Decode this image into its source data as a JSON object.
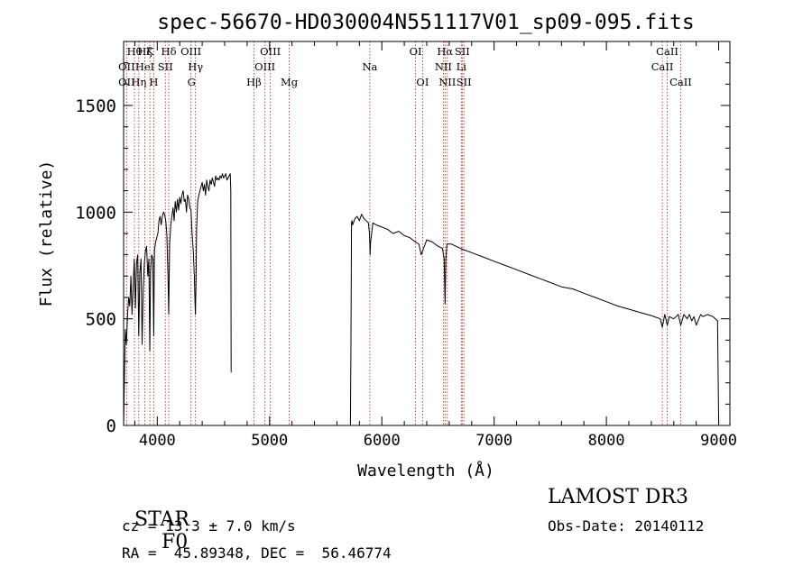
{
  "colors": {
    "spectrum": "#000000",
    "line_markers": "#c0392b",
    "axes": "#000000"
  },
  "chart_data": {
    "type": "line",
    "title": "spec-56670-HD030004N551117V01_sp09-095.fits",
    "xlabel": "Wavelength (Å)",
    "ylabel": "Flux (relative)",
    "xlim": [
      3700,
      9100
    ],
    "ylim": [
      0,
      1800
    ],
    "x_ticks": [
      4000,
      5000,
      6000,
      7000,
      8000,
      9000
    ],
    "x_tick_labels": [
      "4000",
      "5000",
      "6000",
      "7000",
      "8000",
      "9000"
    ],
    "y_ticks": [
      0,
      500,
      1000,
      1500
    ],
    "y_tick_labels": [
      "0",
      "500",
      "1000",
      "1500"
    ],
    "grid": false,
    "gaps": [
      [
        4660,
        5720
      ]
    ],
    "series": [
      {
        "x": [
          3700,
          3715,
          3725,
          3735,
          3745,
          3755,
          3765,
          3775,
          3785,
          3795,
          3805,
          3815,
          3825,
          3835,
          3845,
          3855,
          3865,
          3875,
          3885,
          3895,
          3905,
          3915,
          3925,
          3933,
          3940,
          3950,
          3960,
          3968,
          3975,
          3985,
          3995,
          4005,
          4015,
          4025,
          4035,
          4045,
          4055,
          4065,
          4075,
          4085,
          4095,
          4102,
          4110,
          4120,
          4130,
          4140,
          4150,
          4160,
          4170,
          4180,
          4190,
          4200,
          4210,
          4220,
          4230,
          4240,
          4250,
          4260,
          4270,
          4280,
          4290,
          4300,
          4310,
          4320,
          4330,
          4335,
          4340,
          4345,
          4350,
          4360,
          4370,
          4380,
          4390,
          4400,
          4410,
          4420,
          4430,
          4440,
          4450,
          4460,
          4470,
          4480,
          4490,
          4500,
          4510,
          4520,
          4530,
          4540,
          4550,
          4560,
          4570,
          4580,
          4590,
          4600,
          4610,
          4620,
          4630,
          4640,
          4650,
          4655,
          4658,
          4660
        ],
        "y": [
          0,
          450,
          380,
          520,
          600,
          560,
          700,
          520,
          650,
          780,
          550,
          760,
          800,
          420,
          720,
          780,
          380,
          650,
          760,
          820,
          840,
          700,
          780,
          350,
          720,
          800,
          780,
          420,
          820,
          860,
          880,
          900,
          960,
          980,
          940,
          980,
          1000,
          990,
          960,
          900,
          700,
          520,
          850,
          940,
          980,
          1020,
          960,
          1050,
          1000,
          1060,
          1010,
          1070,
          1040,
          1080,
          1100,
          1050,
          1060,
          1000,
          1080,
          1060,
          1020,
          1010,
          900,
          820,
          700,
          600,
          520,
          680,
          920,
          1050,
          1080,
          1100,
          1120,
          1140,
          1100,
          1130,
          1080,
          1150,
          1120,
          1100,
          1150,
          1130,
          1160,
          1140,
          1120,
          1170,
          1150,
          1160,
          1150,
          1170,
          1160,
          1180,
          1160,
          1170,
          1180,
          1150,
          1160,
          1170,
          1180,
          1100,
          250,
          250
        ]
      },
      {
        "x": [
          5720,
          5725,
          5730,
          5735,
          5740,
          5760,
          5780,
          5800,
          5820,
          5840,
          5860,
          5880,
          5890,
          5895,
          5900,
          5920,
          5950,
          6000,
          6050,
          6100,
          6150,
          6200,
          6250,
          6300,
          6330,
          6350,
          6400,
          6450,
          6500,
          6540,
          6555,
          6563,
          6570,
          6580,
          6620,
          6700,
          6800,
          6900,
          7000,
          7100,
          7200,
          7300,
          7400,
          7500,
          7600,
          7700,
          7800,
          7900,
          8000,
          8100,
          8200,
          8300,
          8400,
          8480,
          8498,
          8520,
          8542,
          8560,
          8600,
          8640,
          8662,
          8690,
          8720,
          8740,
          8760,
          8780,
          8800,
          8840,
          8860,
          8900,
          8950,
          8990,
          9000
        ],
        "y": [
          0,
          400,
          950,
          960,
          940,
          970,
          980,
          960,
          990,
          970,
          960,
          950,
          900,
          800,
          860,
          950,
          940,
          930,
          920,
          900,
          910,
          890,
          880,
          860,
          850,
          800,
          870,
          860,
          840,
          830,
          780,
          570,
          780,
          850,
          850,
          830,
          810,
          790,
          770,
          750,
          730,
          710,
          690,
          670,
          650,
          640,
          620,
          600,
          580,
          560,
          545,
          530,
          515,
          500,
          460,
          520,
          470,
          510,
          500,
          520,
          470,
          520,
          500,
          520,
          490,
          510,
          470,
          520,
          510,
          520,
          510,
          490,
          0
        ]
      }
    ],
    "line_labels": [
      {
        "text": "OII",
        "x": 3727,
        "row": 2,
        "marker": true
      },
      {
        "text": "OII",
        "x": 3727,
        "row": 3,
        "marker": false
      },
      {
        "text": "Hθ",
        "x": 3797,
        "row": 1,
        "marker": true
      },
      {
        "text": "Hη",
        "x": 3835,
        "row": 3,
        "marker": true
      },
      {
        "text": "Hζ",
        "x": 3889,
        "row": 1,
        "marker": true
      },
      {
        "text": "HeI",
        "x": 3889,
        "row": 2,
        "marker": false
      },
      {
        "text": "K",
        "x": 3934,
        "row": 1,
        "marker": true
      },
      {
        "text": "H",
        "x": 3968,
        "row": 3,
        "marker": true
      },
      {
        "text": "SII",
        "x": 4072,
        "row": 2,
        "marker": true
      },
      {
        "text": "Hδ",
        "x": 4102,
        "row": 1,
        "marker": true
      },
      {
        "text": "OIII",
        "x": 4300,
        "row": 1,
        "marker": true
      },
      {
        "text": "G",
        "x": 4304,
        "row": 3,
        "marker": false
      },
      {
        "text": "Hγ",
        "x": 4340,
        "row": 2,
        "marker": true
      },
      {
        "text": "Hβ",
        "x": 4861,
        "row": 3,
        "marker": true
      },
      {
        "text": "OIII",
        "x": 4959,
        "row": 2,
        "marker": true
      },
      {
        "text": "OIII",
        "x": 5007,
        "row": 1,
        "marker": true
      },
      {
        "text": "Mg",
        "x": 5175,
        "row": 3,
        "marker": true
      },
      {
        "text": "Na",
        "x": 5893,
        "row": 2,
        "marker": true
      },
      {
        "text": "OI",
        "x": 6300,
        "row": 1,
        "marker": true
      },
      {
        "text": "OI",
        "x": 6363,
        "row": 3,
        "marker": true
      },
      {
        "text": "NII",
        "x": 6548,
        "row": 2,
        "marker": true
      },
      {
        "text": "Hα",
        "x": 6563,
        "row": 1,
        "marker": true
      },
      {
        "text": "NII",
        "x": 6583,
        "row": 3,
        "marker": true
      },
      {
        "text": "SII",
        "x": 6716,
        "row": 1,
        "marker": true
      },
      {
        "text": "Li",
        "x": 6708,
        "row": 2,
        "marker": true
      },
      {
        "text": "SII",
        "x": 6731,
        "row": 3,
        "marker": true
      },
      {
        "text": "CaII",
        "x": 8498,
        "row": 2,
        "marker": true
      },
      {
        "text": "CaII",
        "x": 8542,
        "row": 1,
        "marker": true
      },
      {
        "text": "CaII",
        "x": 8662,
        "row": 3,
        "marker": true
      }
    ]
  },
  "info": {
    "class_label": "STAR",
    "subclass": "F0",
    "survey": "LAMOST DR3",
    "cz": "cz = 13.3 ± 7.0 km/s",
    "obs_date": "Obs-Date: 20140112",
    "coords": "RA =  45.89348, DEC =  56.46774"
  }
}
